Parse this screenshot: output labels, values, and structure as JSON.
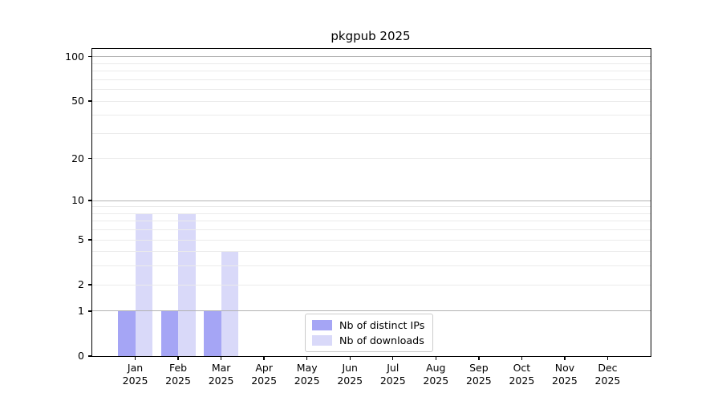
{
  "chart_data": {
    "type": "bar",
    "title": "pkgpub 2025",
    "categories": [
      "Jan",
      "Feb",
      "Mar",
      "Apr",
      "May",
      "Jun",
      "Jul",
      "Aug",
      "Sep",
      "Oct",
      "Nov",
      "Dec"
    ],
    "category_year": "2025",
    "series": [
      {
        "name": "Nb of distinct IPs",
        "color": "#a5a5f5",
        "values": [
          1,
          1,
          1,
          0,
          0,
          0,
          0,
          0,
          0,
          0,
          0,
          0
        ]
      },
      {
        "name": "Nb of downloads",
        "color": "#d9d9f9",
        "values": [
          8,
          8,
          4,
          0,
          0,
          0,
          0,
          0,
          0,
          0,
          0,
          0
        ]
      }
    ],
    "yscale": "log1p",
    "ylim": [
      0,
      113
    ],
    "ytick_values": [
      0,
      1,
      2,
      5,
      10,
      20,
      50,
      100
    ],
    "ytick_labels": [
      "0",
      "1",
      "2",
      "5",
      "10",
      "20",
      "50",
      "100"
    ],
    "major_grid_values": [
      1,
      10,
      100
    ],
    "minor_grid_values": [
      2,
      3,
      4,
      5,
      6,
      7,
      8,
      9,
      20,
      30,
      40,
      50,
      60,
      70,
      80,
      90
    ],
    "grid": true,
    "legend_position": "lower center",
    "colors": {
      "major_grid": "#b2b2b2",
      "minor_grid": "#ebebeb",
      "spine": "#000000"
    }
  }
}
